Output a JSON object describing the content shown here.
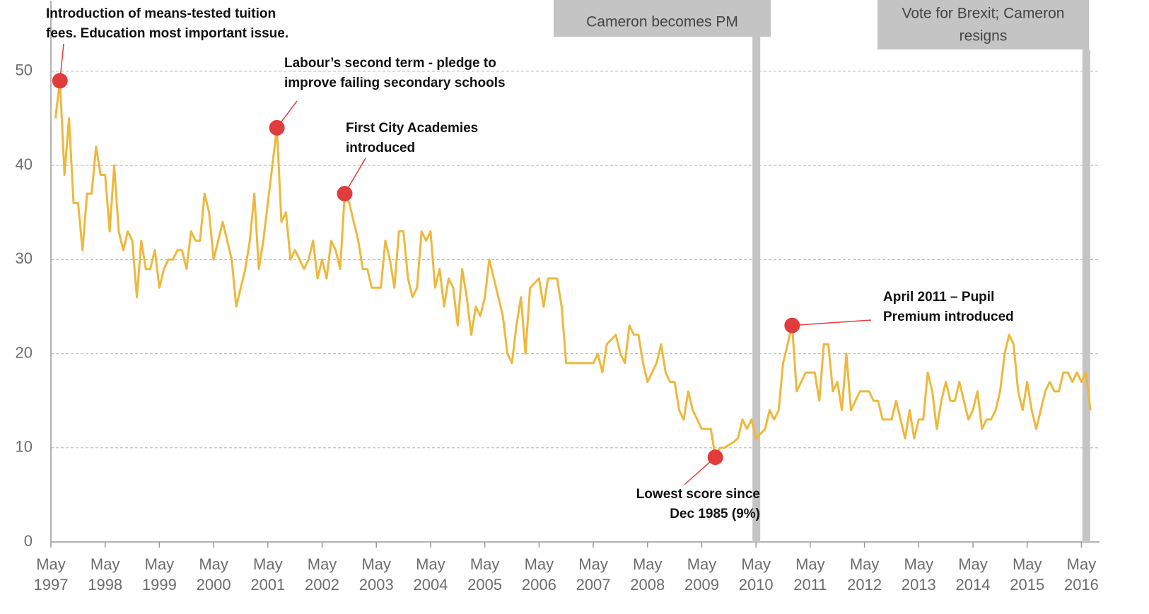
{
  "chart_data": {
    "type": "line",
    "x": [
      "1997-06",
      "1997-07",
      "1997-08",
      "1997-09",
      "1997-10",
      "1997-11",
      "1997-12",
      "1998-01",
      "1998-02",
      "1998-03",
      "1998-04",
      "1998-05",
      "1998-06",
      "1998-07",
      "1998-08",
      "1998-09",
      "1998-10",
      "1998-11",
      "1998-12",
      "1999-01",
      "1999-02",
      "1999-03",
      "1999-04",
      "1999-05",
      "1999-06",
      "1999-07",
      "1999-08",
      "1999-09",
      "1999-10",
      "1999-11",
      "1999-12",
      "2000-01",
      "2000-02",
      "2000-03",
      "2000-04",
      "2000-05",
      "2000-06",
      "2000-07",
      "2000-08",
      "2000-09",
      "2000-10",
      "2000-11",
      "2000-12",
      "2001-01",
      "2001-02",
      "2001-03",
      "2001-04",
      "2001-05",
      "2001-06",
      "2001-07",
      "2001-08",
      "2001-09",
      "2001-10",
      "2001-11",
      "2001-12",
      "2002-01",
      "2002-02",
      "2002-03",
      "2002-04",
      "2002-05",
      "2002-06",
      "2002-07",
      "2002-08",
      "2002-09",
      "2002-10",
      "2002-11",
      "2002-12",
      "2003-01",
      "2003-02",
      "2003-03",
      "2003-04",
      "2003-05",
      "2003-06",
      "2003-07",
      "2003-08",
      "2003-09",
      "2003-10",
      "2003-11",
      "2003-12",
      "2004-01",
      "2004-02",
      "2004-03",
      "2004-04",
      "2004-05",
      "2004-06",
      "2004-07",
      "2004-08",
      "2004-09",
      "2004-10",
      "2004-11",
      "2004-12",
      "2005-01",
      "2005-02",
      "2005-03",
      "2005-04",
      "2005-05",
      "2005-06",
      "2005-07",
      "2005-08",
      "2005-09",
      "2005-10",
      "2005-11",
      "2005-12",
      "2006-01",
      "2006-02",
      "2006-03",
      "2006-04",
      "2006-05",
      "2006-06",
      "2006-07",
      "2006-08",
      "2006-09",
      "2006-10",
      "2006-11",
      "2006-12",
      "2007-01",
      "2007-02",
      "2007-03",
      "2007-04",
      "2007-05",
      "2007-06",
      "2007-07",
      "2007-08",
      "2007-09",
      "2007-10",
      "2007-11",
      "2007-12",
      "2008-01",
      "2008-02",
      "2008-03",
      "2008-04",
      "2008-05",
      "2008-06",
      "2008-07",
      "2008-08",
      "2008-09",
      "2008-10",
      "2008-11",
      "2008-12",
      "2009-01",
      "2009-02",
      "2009-03",
      "2009-04",
      "2009-05",
      "2009-06",
      "2009-07",
      "2009-08",
      "2009-09",
      "2009-10",
      "2009-11",
      "2009-12",
      "2010-01",
      "2010-02",
      "2010-03",
      "2010-04",
      "2010-05",
      "2010-06",
      "2010-07",
      "2010-08",
      "2010-09",
      "2010-10",
      "2010-11",
      "2010-12",
      "2011-01",
      "2011-02",
      "2011-03",
      "2011-04",
      "2011-05",
      "2011-06",
      "2011-07",
      "2011-08",
      "2011-09",
      "2011-10",
      "2011-11",
      "2011-12",
      "2012-01",
      "2012-02",
      "2012-03",
      "2012-04",
      "2012-05",
      "2012-06",
      "2012-07",
      "2012-08",
      "2012-09",
      "2012-10",
      "2012-11",
      "2012-12",
      "2013-01",
      "2013-02",
      "2013-03",
      "2013-04",
      "2013-05",
      "2013-06",
      "2013-07",
      "2013-08",
      "2013-09",
      "2013-10",
      "2013-11",
      "2013-12",
      "2014-01",
      "2014-02",
      "2014-03",
      "2014-04",
      "2014-05",
      "2014-06",
      "2014-07",
      "2014-08",
      "2014-09",
      "2014-10",
      "2014-11",
      "2014-12",
      "2015-01",
      "2015-02",
      "2015-03",
      "2015-04",
      "2015-05",
      "2015-06",
      "2015-07",
      "2015-08",
      "2015-09",
      "2015-10",
      "2015-11",
      "2015-12",
      "2016-01",
      "2016-02",
      "2016-03",
      "2016-04",
      "2016-05",
      "2016-06",
      "2016-07"
    ],
    "series": [
      {
        "color": "#edb83c",
        "values": [
          45,
          49,
          39,
          45,
          36,
          36,
          31,
          37,
          37,
          42,
          39,
          39,
          33,
          40,
          33,
          31,
          33,
          32,
          26,
          32,
          29,
          29,
          31,
          27,
          29,
          30,
          30,
          31,
          31,
          29,
          33,
          32,
          32,
          37,
          35,
          30,
          32,
          34,
          32,
          30,
          25,
          27,
          29,
          32,
          37,
          29,
          32,
          36,
          40,
          44,
          34,
          35,
          30,
          31,
          30,
          29,
          30,
          32,
          28,
          30,
          28,
          32,
          31,
          29,
          37,
          36,
          34,
          32,
          29,
          29,
          27,
          27,
          27,
          32,
          30,
          27,
          33,
          33,
          28,
          26,
          27,
          33,
          32,
          33,
          27,
          29,
          25,
          28,
          27,
          23,
          29,
          26,
          22,
          25,
          24,
          26,
          30,
          28,
          26,
          24,
          20,
          19,
          23,
          26,
          20,
          27,
          27.5,
          28,
          25,
          28,
          28,
          28,
          25,
          19,
          19,
          19,
          19,
          19,
          19,
          19,
          20,
          18,
          21,
          21.5,
          22,
          20,
          19,
          23,
          22,
          22,
          19,
          17,
          18,
          19,
          21,
          18,
          17,
          17,
          14,
          13,
          16,
          14,
          13,
          12,
          12,
          12,
          9,
          10,
          10,
          10.3,
          10.6,
          11,
          13,
          12,
          13,
          11,
          11.5,
          12,
          14,
          13,
          14,
          19,
          21,
          23,
          16,
          17,
          18,
          18,
          18,
          15,
          21,
          21,
          16,
          17,
          14,
          20,
          14,
          15,
          16,
          16,
          16,
          15,
          15,
          13,
          13,
          13,
          15,
          13,
          11,
          14,
          11,
          13,
          13,
          18,
          16,
          12,
          15,
          17,
          15,
          15,
          17,
          15,
          13,
          14,
          16,
          12,
          13,
          13,
          14,
          16,
          20,
          22,
          21,
          16,
          14,
          17,
          14,
          12,
          14,
          16,
          17,
          16,
          16,
          18,
          18,
          17,
          18,
          17,
          18,
          14
        ]
      }
    ],
    "xlim": [
      "1997-05",
      "2016-09"
    ],
    "xticks": [
      {
        "value": "1997-05",
        "label": "May 1997"
      },
      {
        "value": "1998-05",
        "label": "May 1998"
      },
      {
        "value": "1999-05",
        "label": "May 1999"
      },
      {
        "value": "2000-05",
        "label": "May 2000"
      },
      {
        "value": "2001-05",
        "label": "May 2001"
      },
      {
        "value": "2002-05",
        "label": "May 2002"
      },
      {
        "value": "2003-05",
        "label": "May 2003"
      },
      {
        "value": "2004-05",
        "label": "May 2004"
      },
      {
        "value": "2005-05",
        "label": "May 2005"
      },
      {
        "value": "2006-05",
        "label": "May 2006"
      },
      {
        "value": "2007-05",
        "label": "May 2007"
      },
      {
        "value": "2008-05",
        "label": "May 2008"
      },
      {
        "value": "2009-05",
        "label": "May 2009"
      },
      {
        "value": "2010-05",
        "label": "May 2010"
      },
      {
        "value": "2011-05",
        "label": "May 2011"
      },
      {
        "value": "2012-05",
        "label": "May 2012"
      },
      {
        "value": "2013-05",
        "label": "May 2013"
      },
      {
        "value": "2014-05",
        "label": "May 2014"
      },
      {
        "value": "2015-05",
        "label": "May 2015"
      },
      {
        "value": "2016-05",
        "label": "May 2016"
      }
    ],
    "ylim": [
      0,
      57.5
    ],
    "yticks": [
      0,
      10,
      20,
      30,
      40,
      50
    ],
    "grid": true,
    "annotations": [
      {
        "text": [
          "Introduction of means-tested tuition",
          "fees. Education most important issue."
        ],
        "x": "1997-07",
        "y": 49,
        "color": "#e03c3c"
      },
      {
        "text": [
          "Labour’s second term - pledge to",
          "improve failing secondary schools"
        ],
        "x": "2001-07",
        "y": 44,
        "color": "#e03c3c"
      },
      {
        "text": [
          "First City Academies",
          "introduced"
        ],
        "x": "2002-10",
        "y": 37,
        "color": "#e03c3c"
      },
      {
        "text": [
          "Lowest score since",
          "Dec 1985 (9%)"
        ],
        "x": "2009-08",
        "y": 9,
        "color": "#e03c3c"
      },
      {
        "text": [
          "April 2011 – Pupil",
          "Premium introduced"
        ],
        "x": "2011-01",
        "y": 23,
        "color": "#e03c3c"
      }
    ],
    "events": [
      {
        "label": [
          "Cameron becomes PM"
        ],
        "x": "2010-05"
      },
      {
        "label": [
          "Vote for Brexit; Cameron",
          "resigns"
        ],
        "x": "2016-06"
      }
    ]
  }
}
